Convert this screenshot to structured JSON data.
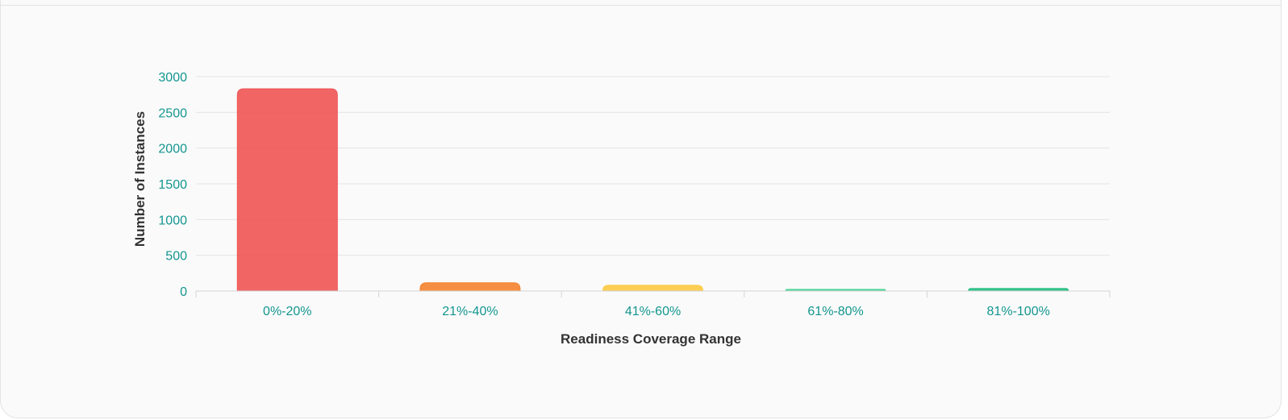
{
  "chart_data": {
    "type": "bar",
    "categories": [
      "0%-20%",
      "21%-40%",
      "41%-60%",
      "61%-80%",
      "81%-100%"
    ],
    "values": [
      2830,
      115,
      80,
      15,
      35
    ],
    "colors": [
      "#f05454",
      "#f5822e",
      "#fcc93f",
      "#3ed18d",
      "#1fbb7e"
    ],
    "xlabel": "Readiness Coverage Range",
    "ylabel": "Number of Instances",
    "ylim": [
      0,
      3000
    ],
    "yticks": [
      0,
      500,
      1000,
      1500,
      2000,
      2500,
      3000
    ],
    "grid": true,
    "legend": "none"
  }
}
